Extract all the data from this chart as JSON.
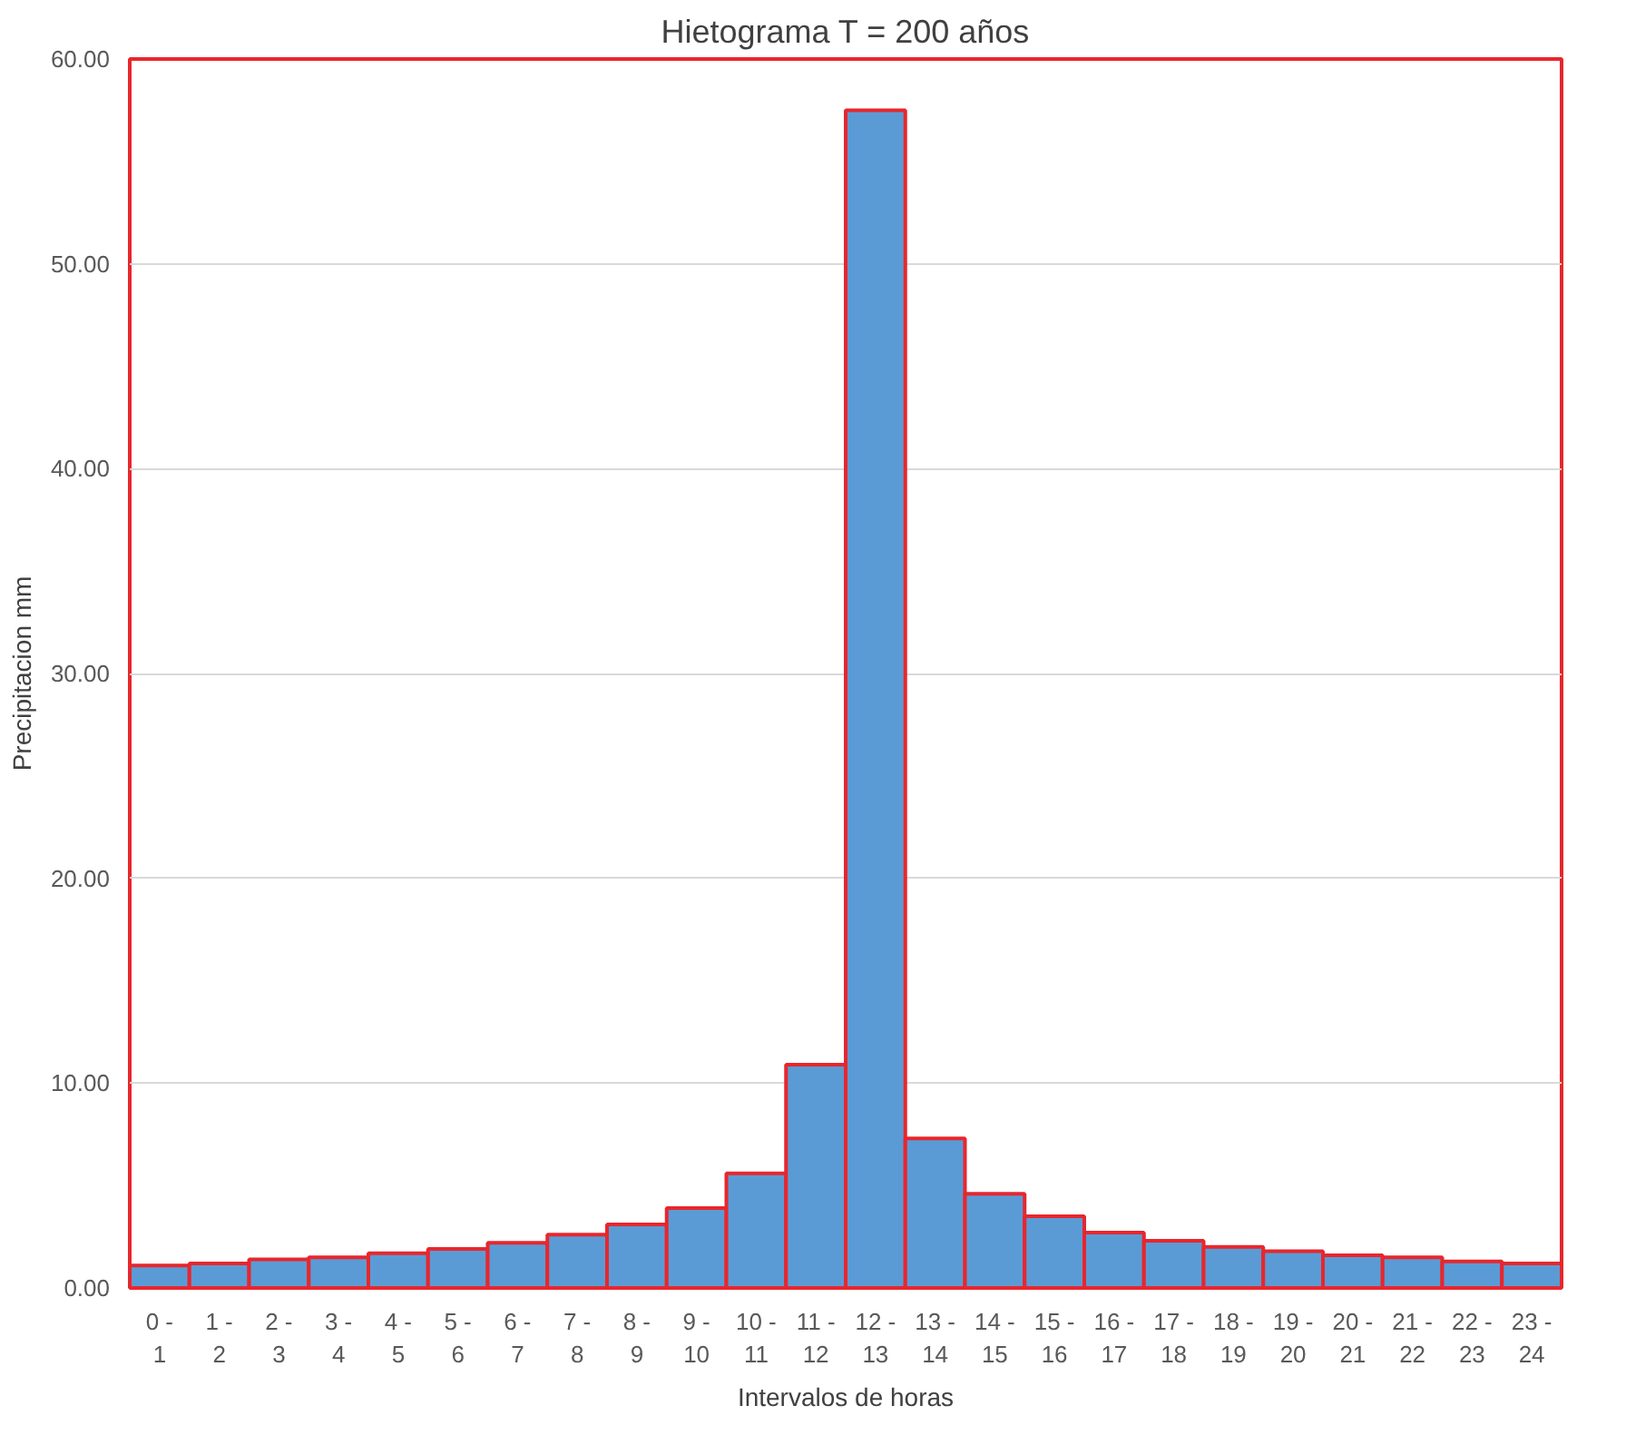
{
  "chart_data": {
    "type": "bar",
    "title": "Hietograma T = 200 años",
    "xlabel": "Intervalos de horas",
    "ylabel": "Precipitacion mm",
    "categories": [
      "0 - 1",
      "1 - 2",
      "2 - 3",
      "3 - 4",
      "4 - 5",
      "5 - 6",
      "6 - 7",
      "7 - 8",
      "8 - 9",
      "9 - 10",
      "10 - 11",
      "11 - 12",
      "12 - 13",
      "13 - 14",
      "14 - 15",
      "15 - 16",
      "16 - 17",
      "17 - 18",
      "18 - 19",
      "19 - 20",
      "20 - 21",
      "21 - 22",
      "22 - 23",
      "23 - 24"
    ],
    "values": [
      1.1,
      1.2,
      1.4,
      1.5,
      1.7,
      1.9,
      2.2,
      2.6,
      3.1,
      3.9,
      5.6,
      10.9,
      57.5,
      7.3,
      4.6,
      3.5,
      2.7,
      2.3,
      2.0,
      1.8,
      1.6,
      1.5,
      1.3,
      1.2
    ],
    "color": "#5b9bd5",
    "ylim": [
      0,
      60
    ],
    "yticks": [
      {
        "value": 0,
        "label": "0.00"
      },
      {
        "value": 10,
        "label": "10.00"
      },
      {
        "value": 20,
        "label": "20.00"
      },
      {
        "value": 30,
        "label": "30.00"
      },
      {
        "value": 40,
        "label": "40.00"
      },
      {
        "value": 50,
        "label": "50.00"
      },
      {
        "value": 60,
        "label": "60.00"
      }
    ],
    "grid": "y"
  }
}
